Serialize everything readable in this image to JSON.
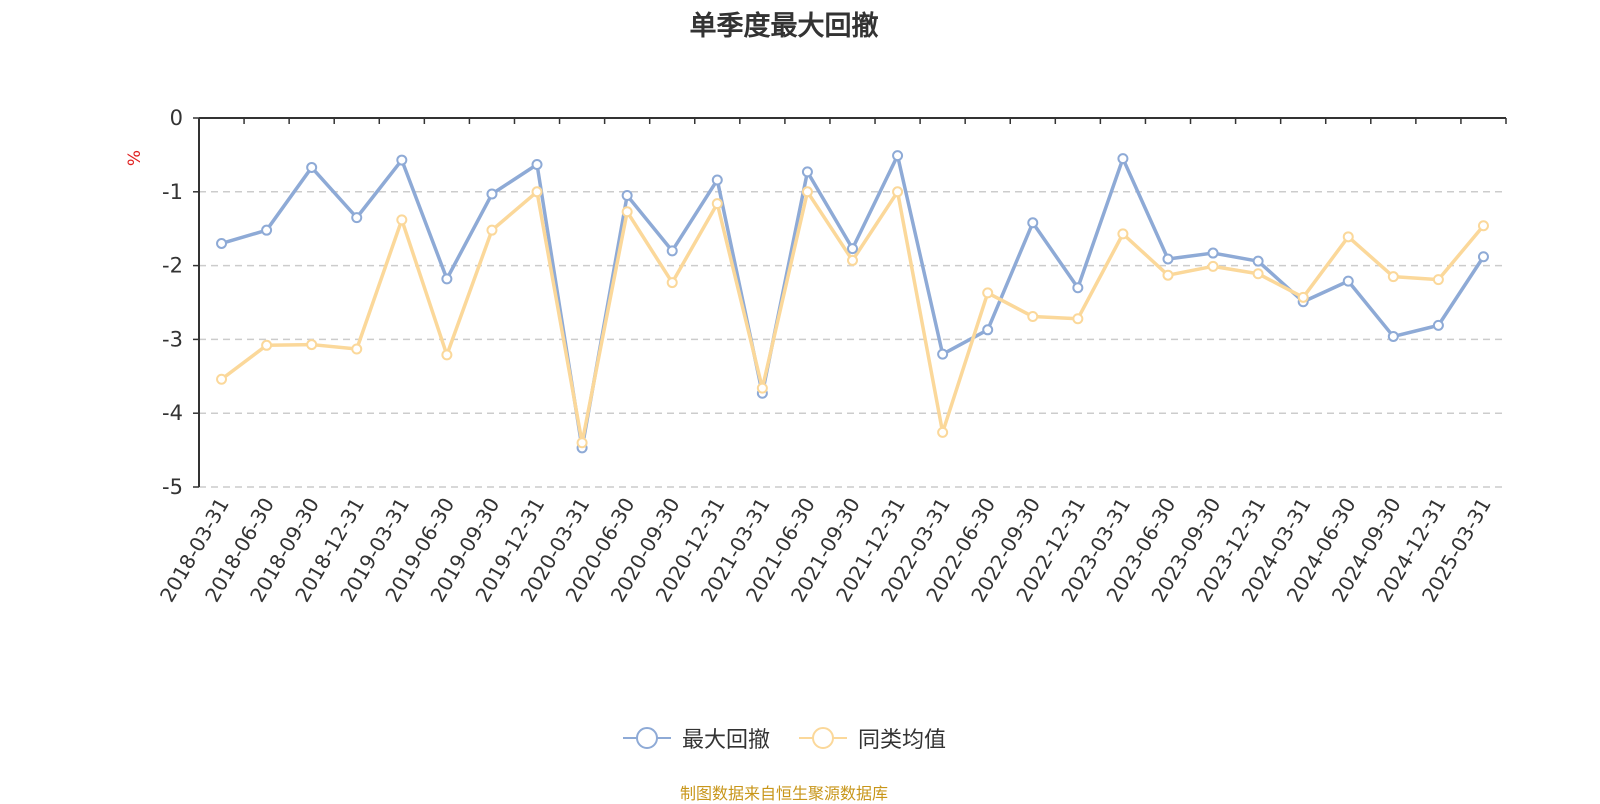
{
  "chart_data": {
    "type": "line",
    "title": "单季度最大回撤",
    "ylabel": "%",
    "ylim": [
      -5,
      0
    ],
    "yticks": [
      0,
      -1,
      -2,
      -3,
      -4,
      -5
    ],
    "grid": true,
    "legend_position": "bottom-center",
    "categories": [
      "2018-03-31",
      "2018-06-30",
      "2018-09-30",
      "2018-12-31",
      "2019-03-31",
      "2019-06-30",
      "2019-09-30",
      "2019-12-31",
      "2020-03-31",
      "2020-06-30",
      "2020-09-30",
      "2020-12-31",
      "2021-03-31",
      "2021-06-30",
      "2021-09-30",
      "2021-12-31",
      "2022-03-31",
      "2022-06-30",
      "2022-09-30",
      "2022-12-31",
      "2023-03-31",
      "2023-06-30",
      "2023-09-30",
      "2023-12-31",
      "2024-03-31",
      "2024-06-30",
      "2024-09-30",
      "2024-12-31",
      "2025-03-31"
    ],
    "series": [
      {
        "name": "最大回撤",
        "color": "#8eaad6",
        "values": [
          -1.7,
          -1.52,
          -0.67,
          -1.35,
          -0.57,
          -2.18,
          -1.03,
          -0.63,
          -4.47,
          -1.05,
          -1.8,
          -0.84,
          -3.73,
          -0.73,
          -1.77,
          -0.51,
          -3.2,
          -2.87,
          -1.42,
          -2.3,
          -0.55,
          -1.91,
          -1.83,
          -1.94,
          -2.49,
          -2.21,
          -2.96,
          -2.81,
          -1.88
        ]
      },
      {
        "name": "同类均值",
        "color": "#fbd89a",
        "values": [
          -3.54,
          -3.08,
          -3.07,
          -3.13,
          -1.38,
          -3.21,
          -1.52,
          -1.0,
          -4.4,
          -1.27,
          -2.23,
          -1.16,
          -3.66,
          -1.0,
          -1.93,
          -1.0,
          -4.26,
          -2.37,
          -2.69,
          -2.72,
          -1.57,
          -2.13,
          -2.01,
          -2.11,
          -2.43,
          -1.61,
          -2.15,
          -2.19,
          -1.46
        ]
      }
    ]
  },
  "source_note": "制图数据来自恒生聚源数据库"
}
